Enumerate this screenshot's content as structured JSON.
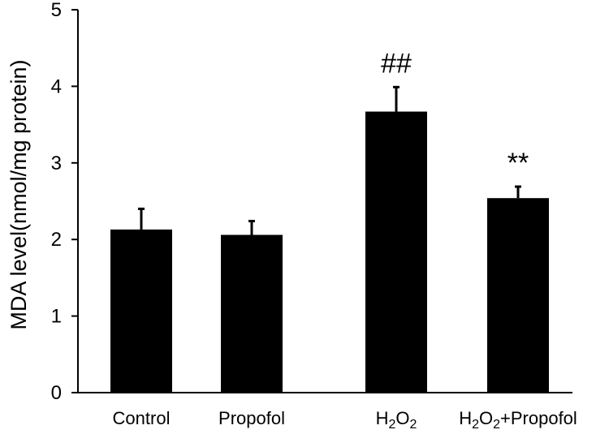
{
  "chart_data": {
    "type": "bar",
    "ylabel": "MDA level(nmol/mg protein)",
    "xlabel": "",
    "ylim": [
      0,
      5
    ],
    "yticks": [
      0,
      1,
      2,
      3,
      4,
      5
    ],
    "yticks_labels": [
      "0",
      "1",
      "2",
      "3",
      "4",
      "5"
    ],
    "categories": [
      {
        "main": "Control",
        "segments": [
          {
            "text": "Control",
            "sub": false
          }
        ]
      },
      {
        "main": "Propofol",
        "segments": [
          {
            "text": "Propofol",
            "sub": false
          }
        ]
      },
      {
        "main": "H2O2",
        "segments": [
          {
            "text": "H",
            "sub": false
          },
          {
            "text": "2",
            "sub": true
          },
          {
            "text": "O",
            "sub": false
          },
          {
            "text": "2",
            "sub": true
          }
        ]
      },
      {
        "main": "H2O2+Propofol",
        "segments": [
          {
            "text": "H",
            "sub": false
          },
          {
            "text": "2",
            "sub": true
          },
          {
            "text": "O",
            "sub": false
          },
          {
            "text": "2",
            "sub": true
          },
          {
            "text": "+Propofol",
            "sub": false
          }
        ]
      }
    ],
    "values": [
      2.13,
      2.06,
      3.67,
      2.54
    ],
    "errors": [
      0.27,
      0.18,
      0.32,
      0.15
    ],
    "annotations": [
      "",
      "",
      "##",
      "**"
    ],
    "bar_color": "#000000",
    "grid": false,
    "legend": "none"
  }
}
